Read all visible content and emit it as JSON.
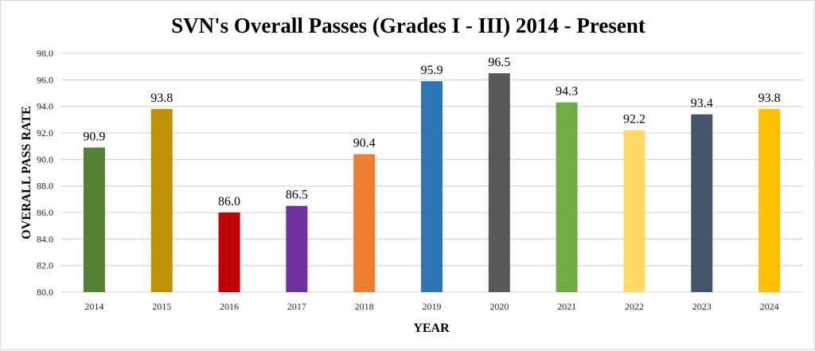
{
  "chart_data": {
    "type": "bar",
    "title": "SVN's Overall Passes (Grades I - III) 2014 - Present",
    "xlabel": "YEAR",
    "ylabel": "OVERALL PASS RATE",
    "ylim": [
      80.0,
      98.0
    ],
    "ytick_step": 2.0,
    "yticks": [
      "80.0",
      "82.0",
      "84.0",
      "86.0",
      "88.0",
      "90.0",
      "92.0",
      "94.0",
      "96.0",
      "98.0"
    ],
    "grid": true,
    "legend": "none",
    "categories": [
      "2014",
      "2015",
      "2016",
      "2017",
      "2018",
      "2019",
      "2020",
      "2021",
      "2022",
      "2023",
      "2024"
    ],
    "values": [
      90.9,
      93.8,
      86.0,
      86.5,
      90.4,
      95.9,
      96.5,
      94.3,
      92.2,
      93.4,
      93.8
    ],
    "data_labels": [
      "90.9",
      "93.8",
      "86.0",
      "86.5",
      "90.4",
      "95.9",
      "96.5",
      "94.3",
      "92.2",
      "93.4",
      "93.8"
    ],
    "colors": [
      "#548235",
      "#BF9000",
      "#C00000",
      "#7030A0",
      "#ED7D31",
      "#2E75B6",
      "#595959",
      "#70AD47",
      "#FFD966",
      "#44546A",
      "#FFC000"
    ]
  }
}
